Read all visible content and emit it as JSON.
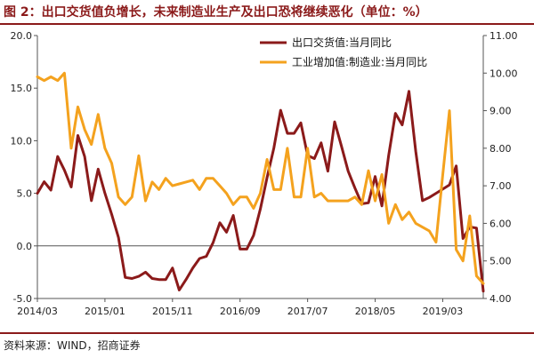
{
  "header": {
    "title": "图 2：出口交货值负增长，未来制造业生产及出口恐将继续恶化（单位：%）"
  },
  "footer": {
    "source": "资料来源：WIND，招商证券"
  },
  "chart_data": {
    "type": "line",
    "title": "",
    "x_tick_labels": [
      "2014/03",
      "2015/01",
      "2015/11",
      "2016/09",
      "2017/07",
      "2018/05",
      "2019/03"
    ],
    "x_start": "2014/03",
    "y_left": {
      "min": -5,
      "max": 20,
      "ticks": [
        "-5.0",
        "0.0",
        "5.0",
        "10.0",
        "15.0",
        "20.0"
      ]
    },
    "y_right": {
      "min": 4,
      "max": 11,
      "ticks": [
        "4.00",
        "5.00",
        "6.00",
        "7.00",
        "8.00",
        "9.00",
        "10.00",
        "11.00"
      ]
    },
    "grid": false,
    "legend_position": "top-right",
    "series": [
      {
        "name": "出口交货值:当月同比",
        "axis": "left",
        "color": "#8b1a1a",
        "values": [
          5.0,
          6.1,
          5.3,
          8.5,
          7.2,
          5.6,
          10.5,
          8.5,
          4.3,
          7.3,
          5.0,
          3.0,
          0.8,
          -3.0,
          -3.1,
          -2.9,
          -2.5,
          -3.1,
          -3.2,
          -3.2,
          -2.1,
          -4.2,
          -3.2,
          -2.1,
          -1.2,
          -1.0,
          0.3,
          2.2,
          1.3,
          2.9,
          -0.3,
          -0.3,
          1.0,
          3.5,
          6.5,
          9.3,
          12.9,
          10.7,
          10.7,
          11.7,
          8.6,
          8.3,
          9.8,
          7.1,
          11.8,
          9.5,
          7.1,
          5.5,
          4.0,
          4.1,
          6.6,
          3.8,
          8.6,
          12.6,
          11.5,
          14.7,
          9.0,
          4.3,
          4.6,
          5.0,
          5.4,
          5.8,
          7.6,
          0.7,
          1.8,
          1.7,
          -4.3
        ]
      },
      {
        "name": "工业增加值:制造业:当月同比",
        "axis": "right",
        "color": "#f4a21e",
        "values": [
          9.9,
          9.8,
          9.9,
          9.8,
          10.0,
          8.0,
          9.1,
          8.5,
          8.1,
          8.9,
          8.0,
          7.6,
          6.7,
          6.5,
          6.7,
          7.8,
          6.6,
          7.1,
          6.9,
          7.2,
          7.0,
          7.05,
          7.1,
          7.15,
          6.9,
          7.2,
          7.2,
          7.0,
          6.8,
          6.5,
          6.7,
          6.7,
          6.4,
          6.8,
          7.7,
          6.9,
          6.9,
          8.0,
          6.7,
          6.7,
          8.0,
          6.7,
          6.8,
          6.6,
          6.6,
          6.6,
          6.6,
          6.7,
          6.5,
          7.4,
          6.6,
          7.3,
          6.0,
          6.5,
          6.1,
          6.3,
          6.0,
          5.9,
          5.8,
          5.5,
          7.3,
          9.0,
          5.3,
          5.0,
          6.2,
          4.6,
          4.4
        ]
      }
    ]
  }
}
